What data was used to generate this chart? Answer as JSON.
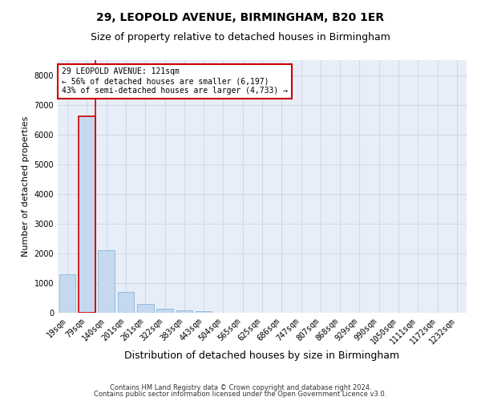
{
  "title1": "29, LEOPOLD AVENUE, BIRMINGHAM, B20 1ER",
  "title2": "Size of property relative to detached houses in Birmingham",
  "xlabel": "Distribution of detached houses by size in Birmingham",
  "ylabel": "Number of detached properties",
  "annotation_title": "29 LEOPOLD AVENUE: 121sqm",
  "annotation_line1": "← 56% of detached houses are smaller (6,197)",
  "annotation_line2": "43% of semi-detached houses are larger (4,733) →",
  "footer1": "Contains HM Land Registry data © Crown copyright and database right 2024.",
  "footer2": "Contains public sector information licensed under the Open Government Licence v3.0.",
  "categories": [
    "19sqm",
    "79sqm",
    "140sqm",
    "201sqm",
    "261sqm",
    "322sqm",
    "383sqm",
    "443sqm",
    "504sqm",
    "565sqm",
    "625sqm",
    "686sqm",
    "747sqm",
    "807sqm",
    "868sqm",
    "929sqm",
    "990sqm",
    "1050sqm",
    "1111sqm",
    "1172sqm",
    "1232sqm"
  ],
  "values": [
    1300,
    6600,
    2100,
    700,
    300,
    130,
    80,
    60,
    0,
    0,
    0,
    0,
    0,
    0,
    0,
    0,
    0,
    0,
    0,
    0,
    0
  ],
  "bar_color": "#c5d8ee",
  "bar_edge_color": "#7aadd4",
  "highlight_bar_index": 1,
  "highlight_bar_edge_color": "#cc0000",
  "vline_color": "#cc0000",
  "vline_x": 1.45,
  "ylim": [
    0,
    8500
  ],
  "yticks": [
    0,
    1000,
    2000,
    3000,
    4000,
    5000,
    6000,
    7000,
    8000
  ],
  "grid_color": "#c8d4e8",
  "bg_color": "#e8eef8",
  "annotation_box_edge_color": "#cc0000",
  "title1_fontsize": 10,
  "title2_fontsize": 9,
  "xlabel_fontsize": 9,
  "ylabel_fontsize": 8,
  "tick_fontsize": 7,
  "annotation_fontsize": 7,
  "footer_fontsize": 6
}
